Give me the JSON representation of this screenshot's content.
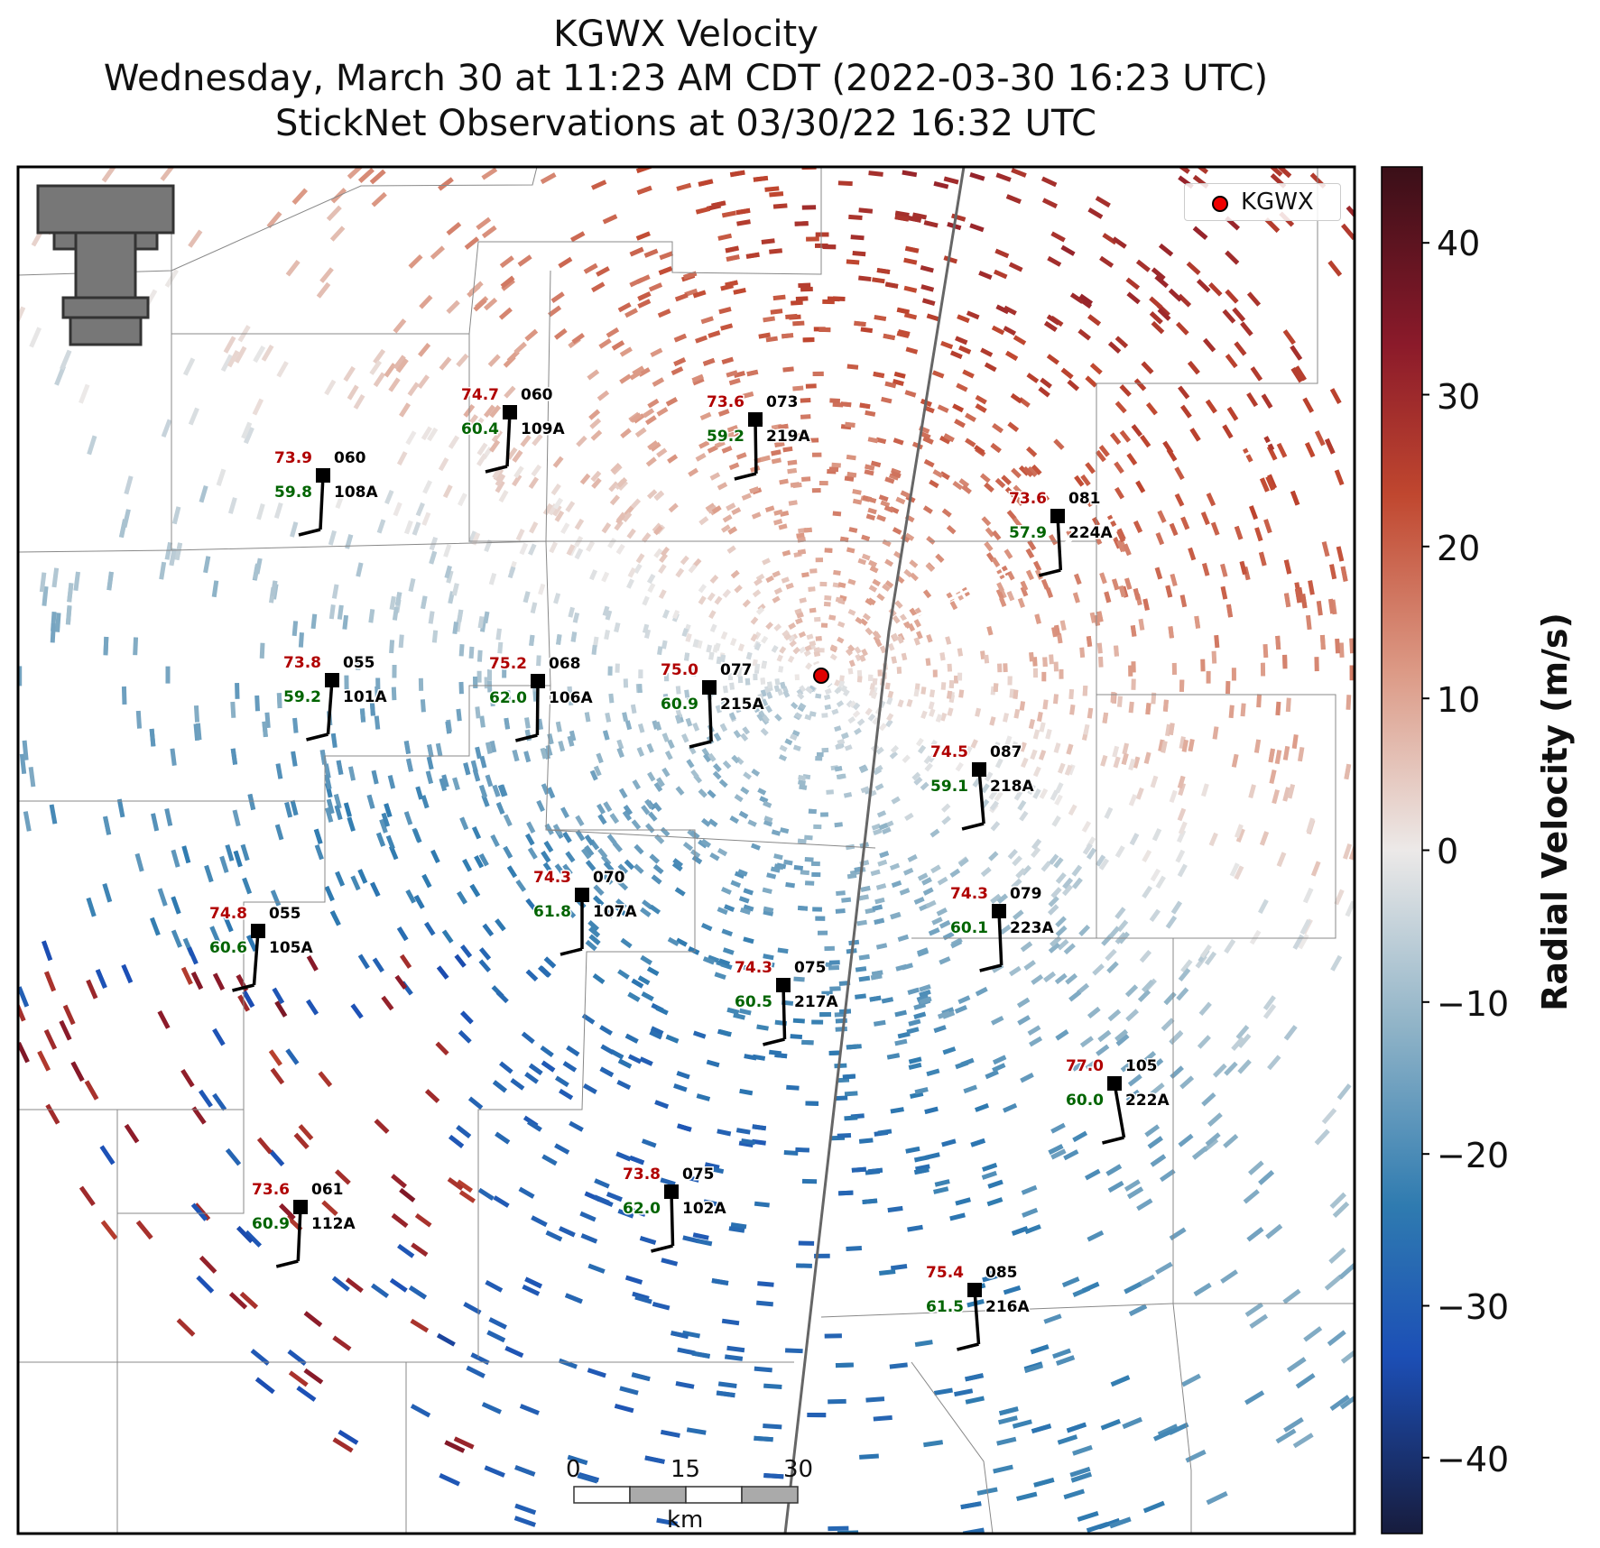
{
  "title": {
    "line1": "KGWX Velocity",
    "line2": "Wednesday, March 30 at 11:23 AM CDT (2022-03-30 16:23 UTC)",
    "line3": "StickNet Observations at 03/30/22 16:32 UTC"
  },
  "legend": {
    "label": "KGWX",
    "marker_color": "#e00000"
  },
  "colorbar": {
    "label": "Radial Velocity (m/s)",
    "ticks": [
      "40",
      "30",
      "20",
      "10",
      "0",
      "−10",
      "−20",
      "−30",
      "−40"
    ],
    "range": [
      -45,
      45
    ]
  },
  "scale_bar": {
    "labels": [
      "0",
      "15",
      "30"
    ],
    "unit": "km"
  },
  "colors": {
    "temperature": "#b00000",
    "dewpoint": "#006400",
    "outbound": "#c0472f",
    "inbound": "#2c6ea6"
  },
  "stations": [
    {
      "id": "109A",
      "temp": "74.7",
      "dew": "60.4",
      "dir": "060"
    },
    {
      "id": "219A",
      "temp": "73.6",
      "dew": "59.2",
      "dir": "073"
    },
    {
      "id": "108A",
      "temp": "73.9",
      "dew": "59.8",
      "dir": "060"
    },
    {
      "id": "224A",
      "temp": "73.6",
      "dew": "57.9",
      "dir": "081"
    },
    {
      "id": "101A",
      "temp": "73.8",
      "dew": "59.2",
      "dir": "055"
    },
    {
      "id": "106A",
      "temp": "75.2",
      "dew": "62.0",
      "dir": "068"
    },
    {
      "id": "215A",
      "temp": "75.0",
      "dew": "60.9",
      "dir": "077"
    },
    {
      "id": "218A",
      "temp": "74.5",
      "dew": "59.1",
      "dir": "087"
    },
    {
      "id": "107A",
      "temp": "74.3",
      "dew": "61.8",
      "dir": "070"
    },
    {
      "id": "223A",
      "temp": "74.3",
      "dew": "60.1",
      "dir": "079"
    },
    {
      "id": "105A",
      "temp": "74.8",
      "dew": "60.6",
      "dir": "055"
    },
    {
      "id": "217A",
      "temp": "74.3",
      "dew": "60.5",
      "dir": "075"
    },
    {
      "id": "222A",
      "temp": "77.0",
      "dew": "60.0",
      "dir": "105"
    },
    {
      "id": "102A",
      "temp": "73.8",
      "dew": "62.0",
      "dir": "075"
    },
    {
      "id": "112A",
      "temp": "73.6",
      "dew": "60.9",
      "dir": "061"
    },
    {
      "id": "216A",
      "temp": "75.4",
      "dew": "61.5",
      "dir": "085"
    }
  ]
}
